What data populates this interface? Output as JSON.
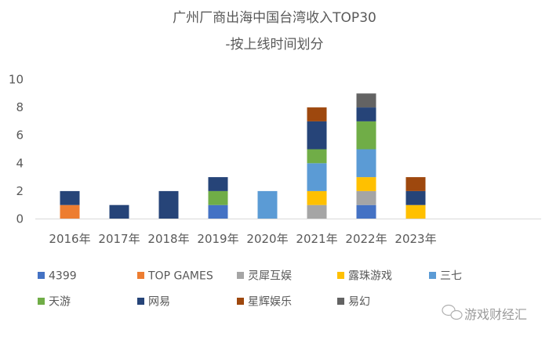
{
  "chart_data": {
    "type": "bar",
    "stacked": true,
    "title": [
      "广州厂商出海中国台湾收入TOP30",
      "-按上线时间划分"
    ],
    "xlabel": "",
    "ylabel": "",
    "categories": [
      "2016年",
      "2017年",
      "2018年",
      "2019年",
      "2020年",
      "2021年",
      "2022年",
      "2023年"
    ],
    "ylim": [
      0,
      10
    ],
    "yticks": [
      0,
      2,
      4,
      6,
      8,
      10
    ],
    "grid": false,
    "legend": "bottom",
    "series": [
      {
        "name": "4399",
        "color": "#4472C4",
        "values": [
          0,
          0,
          0,
          1,
          0,
          0,
          1,
          0
        ]
      },
      {
        "name": "TOP GAMES",
        "color": "#ED7D31",
        "values": [
          1,
          0,
          0,
          0,
          0,
          0,
          0,
          0
        ]
      },
      {
        "name": "灵犀互娱",
        "color": "#A5A5A5",
        "values": [
          0,
          0,
          0,
          0,
          0,
          1,
          1,
          0
        ]
      },
      {
        "name": "露珠游戏",
        "color": "#FFC000",
        "values": [
          0,
          0,
          0,
          0,
          0,
          1,
          1,
          1
        ]
      },
      {
        "name": "三七",
        "color": "#5B9BD5",
        "values": [
          0,
          0,
          0,
          0,
          2,
          2,
          2,
          0
        ]
      },
      {
        "name": "天游",
        "color": "#70AD47",
        "values": [
          0,
          0,
          0,
          1,
          0,
          1,
          2,
          0
        ]
      },
      {
        "name": "网易",
        "color": "#264478",
        "values": [
          1,
          1,
          2,
          1,
          0,
          2,
          1,
          1
        ]
      },
      {
        "name": "星辉娱乐",
        "color": "#9E480E",
        "values": [
          0,
          0,
          0,
          0,
          0,
          1,
          0,
          1
        ]
      },
      {
        "name": "易幻",
        "color": "#636363",
        "values": [
          0,
          0,
          0,
          0,
          0,
          0,
          1,
          0
        ]
      }
    ]
  },
  "watermark": {
    "text": "游戏财经汇",
    "icon": "wechat-icon"
  }
}
